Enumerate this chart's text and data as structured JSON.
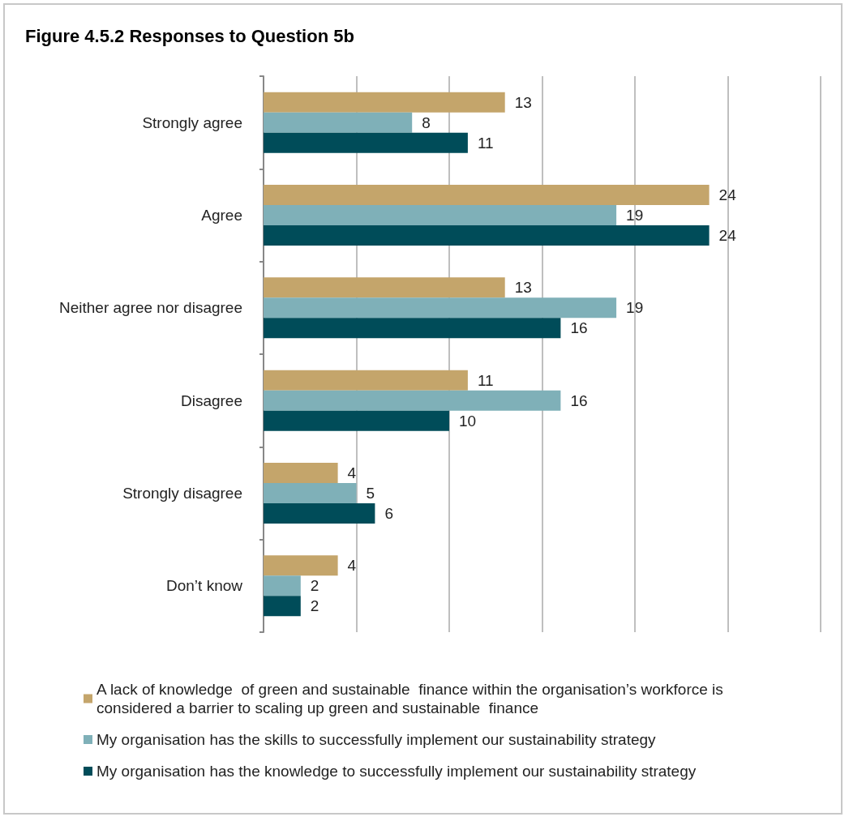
{
  "chart_data": {
    "type": "bar",
    "orientation": "horizontal",
    "title": "Figure 4.5.2 Responses to Question 5b",
    "categories": [
      "Strongly agree",
      "Agree",
      "Neither agree nor disagree",
      "Disagree",
      "Strongly disagree",
      "Don’t know"
    ],
    "series": [
      {
        "name": "A lack of knowledge  of green and sustainable  finance within the organisation’s workforce is considered a barrier to scaling up green and sustainable  finance",
        "color": "#c4a56b",
        "values": [
          13,
          24,
          13,
          11,
          4,
          4
        ]
      },
      {
        "name": "My organisation has the skills to successfully implement our sustainability strategy",
        "color": "#7fb0b8",
        "values": [
          8,
          19,
          19,
          16,
          5,
          2
        ]
      },
      {
        "name": "My organisation has the knowledge to successfully implement our sustainability strategy",
        "color": "#004c59",
        "values": [
          11,
          24,
          16,
          10,
          6,
          2
        ]
      }
    ],
    "xlim": [
      0,
      30
    ],
    "xticks": [
      {
        "value": 0,
        "label": null
      },
      {
        "value": 5,
        "label": null
      },
      {
        "value": 10,
        "label": null
      },
      {
        "value": 15,
        "label": null
      },
      {
        "value": 20,
        "label": null
      },
      {
        "value": 25,
        "label": null
      },
      {
        "value": 30,
        "label": null
      }
    ],
    "tick_labels": "y",
    "grid": "x",
    "legend": "bottom",
    "data_labels": true
  }
}
